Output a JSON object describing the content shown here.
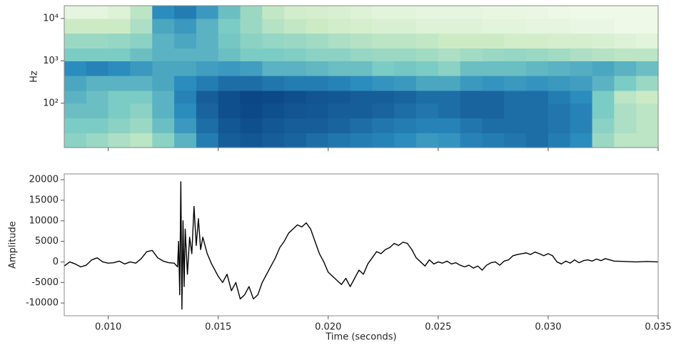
{
  "chart_data": [
    {
      "type": "heatmap",
      "ylabel": "Hz",
      "yscale": "log",
      "ylim": [
        9,
        20000
      ],
      "yticks": [
        {
          "value": 100,
          "label": "10²"
        },
        {
          "value": 1000,
          "label": "10³"
        },
        {
          "value": 10000,
          "label": "10⁴"
        }
      ],
      "xlim": [
        0.008,
        0.035
      ],
      "xticks": [
        0.01,
        0.015,
        0.02,
        0.025,
        0.03,
        0.035
      ],
      "colormap": [
        "#f7fcf0",
        "#ccebc5",
        "#7bccc4",
        "#2b8cbe",
        "#084081"
      ],
      "xbins": [
        0.008,
        0.009,
        0.01,
        0.011,
        0.012,
        0.013,
        0.014,
        0.015,
        0.016,
        0.017,
        0.018,
        0.019,
        0.02,
        0.021,
        0.022,
        0.023,
        0.024,
        0.025,
        0.026,
        0.027,
        0.028,
        0.029,
        0.03,
        0.031,
        0.032,
        0.033,
        0.034,
        0.035
      ],
      "ybins": [
        9,
        20,
        45,
        100,
        200,
        450,
        1000,
        2000,
        4500,
        10000,
        20000
      ],
      "z": [
        [
          0.45,
          0.4,
          0.35,
          0.3,
          0.45,
          0.6,
          0.8,
          0.9,
          0.92,
          0.9,
          0.88,
          0.85,
          0.82,
          0.8,
          0.78,
          0.75,
          0.7,
          0.72,
          0.78,
          0.8,
          0.82,
          0.85,
          0.8,
          0.75,
          0.4,
          0.3,
          0.3
        ],
        [
          0.5,
          0.5,
          0.45,
          0.4,
          0.55,
          0.7,
          0.85,
          0.92,
          0.95,
          0.92,
          0.9,
          0.9,
          0.88,
          0.85,
          0.82,
          0.8,
          0.78,
          0.78,
          0.82,
          0.85,
          0.85,
          0.85,
          0.82,
          0.78,
          0.45,
          0.35,
          0.3
        ],
        [
          0.55,
          0.55,
          0.5,
          0.45,
          0.6,
          0.75,
          0.88,
          0.95,
          0.97,
          0.95,
          0.93,
          0.92,
          0.9,
          0.9,
          0.88,
          0.85,
          0.82,
          0.85,
          0.88,
          0.88,
          0.85,
          0.85,
          0.82,
          0.78,
          0.5,
          0.35,
          0.3
        ],
        [
          0.6,
          0.55,
          0.5,
          0.5,
          0.6,
          0.78,
          0.9,
          0.95,
          0.98,
          0.97,
          0.95,
          0.93,
          0.92,
          0.9,
          0.9,
          0.88,
          0.85,
          0.85,
          0.88,
          0.88,
          0.85,
          0.85,
          0.8,
          0.75,
          0.5,
          0.3,
          0.25
        ],
        [
          0.65,
          0.6,
          0.6,
          0.6,
          0.65,
          0.75,
          0.8,
          0.85,
          0.85,
          0.82,
          0.8,
          0.8,
          0.78,
          0.75,
          0.72,
          0.7,
          0.65,
          0.65,
          0.7,
          0.72,
          0.7,
          0.72,
          0.7,
          0.68,
          0.6,
          0.5,
          0.4
        ],
        [
          0.75,
          0.78,
          0.75,
          0.7,
          0.65,
          0.65,
          0.68,
          0.7,
          0.68,
          0.6,
          0.6,
          0.58,
          0.55,
          0.55,
          0.5,
          0.52,
          0.5,
          0.45,
          0.55,
          0.55,
          0.55,
          0.58,
          0.6,
          0.62,
          0.65,
          0.6,
          0.55
        ],
        [
          0.5,
          0.5,
          0.5,
          0.55,
          0.6,
          0.6,
          0.6,
          0.55,
          0.5,
          0.5,
          0.48,
          0.45,
          0.45,
          0.42,
          0.4,
          0.4,
          0.38,
          0.35,
          0.38,
          0.4,
          0.42,
          0.4,
          0.38,
          0.35,
          0.32,
          0.3,
          0.3
        ],
        [
          0.4,
          0.4,
          0.42,
          0.45,
          0.6,
          0.65,
          0.6,
          0.52,
          0.45,
          0.42,
          0.4,
          0.38,
          0.35,
          0.32,
          0.3,
          0.3,
          0.28,
          0.25,
          0.25,
          0.25,
          0.22,
          0.22,
          0.2,
          0.2,
          0.18,
          0.15,
          0.12
        ],
        [
          0.25,
          0.25,
          0.25,
          0.35,
          0.65,
          0.7,
          0.6,
          0.5,
          0.4,
          0.32,
          0.28,
          0.25,
          0.22,
          0.2,
          0.18,
          0.18,
          0.15,
          0.15,
          0.15,
          0.12,
          0.12,
          0.1,
          0.1,
          0.08,
          0.08,
          0.05,
          0.05
        ],
        [
          0.1,
          0.1,
          0.15,
          0.3,
          0.75,
          0.8,
          0.7,
          0.55,
          0.4,
          0.28,
          0.22,
          0.2,
          0.18,
          0.15,
          0.12,
          0.12,
          0.1,
          0.1,
          0.1,
          0.08,
          0.08,
          0.07,
          0.06,
          0.05,
          0.05,
          0.05,
          0.05
        ]
      ]
    },
    {
      "type": "line",
      "xlabel": "Time (seconds)",
      "ylabel": "Amplitude",
      "color": "#000000",
      "xlim": [
        0.008,
        0.035
      ],
      "ylim": [
        -13100,
        21400
      ],
      "xticks": [
        {
          "value": 0.01,
          "label": "0.010"
        },
        {
          "value": 0.015,
          "label": "0.015"
        },
        {
          "value": 0.02,
          "label": "0.020"
        },
        {
          "value": 0.025,
          "label": "0.025"
        },
        {
          "value": 0.03,
          "label": "0.030"
        },
        {
          "value": 0.035,
          "label": "0.035"
        }
      ],
      "yticks": [
        -10000,
        -5000,
        0,
        5000,
        10000,
        15000,
        20000
      ],
      "x": [
        0.008,
        0.00825,
        0.0085,
        0.00875,
        0.009,
        0.00925,
        0.0095,
        0.00975,
        0.01,
        0.01025,
        0.0105,
        0.01075,
        0.011,
        0.01125,
        0.0115,
        0.01175,
        0.012,
        0.01225,
        0.0125,
        0.01275,
        0.013,
        0.01315,
        0.0132,
        0.01325,
        0.0133,
        0.01335,
        0.0134,
        0.01345,
        0.0135,
        0.0136,
        0.0137,
        0.0138,
        0.0139,
        0.014,
        0.0141,
        0.0142,
        0.0143,
        0.0145,
        0.0147,
        0.015,
        0.0152,
        0.0154,
        0.0156,
        0.0158,
        0.016,
        0.0162,
        0.0164,
        0.0166,
        0.0168,
        0.017,
        0.0172,
        0.0174,
        0.0176,
        0.0178,
        0.018,
        0.0182,
        0.0184,
        0.0186,
        0.0188,
        0.019,
        0.0192,
        0.0194,
        0.0196,
        0.0198,
        0.02,
        0.0202,
        0.0204,
        0.0206,
        0.0208,
        0.021,
        0.0212,
        0.0214,
        0.0216,
        0.0218,
        0.022,
        0.0222,
        0.0224,
        0.0226,
        0.0228,
        0.023,
        0.0232,
        0.0234,
        0.0236,
        0.0238,
        0.024,
        0.0242,
        0.0244,
        0.0246,
        0.0248,
        0.025,
        0.0252,
        0.0254,
        0.0256,
        0.0258,
        0.026,
        0.0262,
        0.0264,
        0.0266,
        0.0268,
        0.027,
        0.0272,
        0.0274,
        0.0276,
        0.0278,
        0.028,
        0.0282,
        0.0284,
        0.0286,
        0.0288,
        0.029,
        0.0292,
        0.0294,
        0.0296,
        0.0298,
        0.03,
        0.0302,
        0.0304,
        0.0306,
        0.0308,
        0.031,
        0.0312,
        0.0314,
        0.0316,
        0.0318,
        0.032,
        0.0322,
        0.0324,
        0.0326,
        0.0328,
        0.033,
        0.0335,
        0.034,
        0.0345,
        0.035
      ],
      "values": [
        -1000,
        0,
        -500,
        -1200,
        -800,
        500,
        1000,
        0,
        -300,
        -200,
        200,
        -500,
        0,
        -300,
        800,
        2500,
        2800,
        1000,
        200,
        -200,
        -300,
        -1200,
        5000,
        -8000,
        19500,
        -11500,
        10000,
        -6000,
        8000,
        -3000,
        6000,
        2000,
        13500,
        4000,
        10500,
        3000,
        6000,
        2000,
        -500,
        -3500,
        -5000,
        -3000,
        -7000,
        -5000,
        -9000,
        -8000,
        -6000,
        -9000,
        -8000,
        -5000,
        -3000,
        -1000,
        1000,
        3500,
        5000,
        7000,
        8000,
        9000,
        8500,
        9500,
        8000,
        5000,
        2000,
        0,
        -2500,
        -3500,
        -4500,
        -5500,
        -4000,
        -6000,
        -4000,
        -2000,
        -3000,
        -500,
        1000,
        2500,
        2000,
        3000,
        3500,
        4500,
        4000,
        4800,
        4500,
        3000,
        1000,
        0,
        -1000,
        500,
        -500,
        0,
        -300,
        200,
        -500,
        -200,
        -800,
        -1200,
        -800,
        -1500,
        -1000,
        -2000,
        -800,
        -200,
        0,
        -800,
        200,
        500,
        1500,
        1800,
        2000,
        2200,
        1800,
        2400,
        2000,
        1500,
        2000,
        1500,
        0,
        -500,
        200,
        -300,
        500,
        -200,
        300,
        500,
        200,
        700,
        300,
        800,
        500,
        200,
        100,
        0,
        100,
        0
      ]
    }
  ]
}
